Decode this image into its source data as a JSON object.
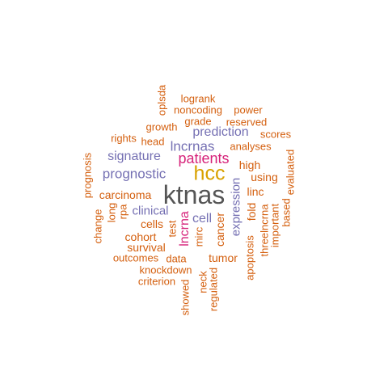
{
  "words": {
    "ktnas": "ktnas",
    "hcc": "hcc",
    "patients": "patients",
    "lncrnas": "lncrnas",
    "prediction": "prediction",
    "signature": "signature",
    "prognostic": "prognostic",
    "clinical": "clinical",
    "cell": "cell",
    "lncrna": "lncrna",
    "expression": "expression",
    "oplsda": "oplsda",
    "logrank": "logrank",
    "noncoding": "noncoding",
    "power": "power",
    "grade": "grade",
    "reserved": "reserved",
    "growth": "growth",
    "rights": "rights",
    "head": "head",
    "scores": "scores",
    "analyses": "analyses",
    "evaluated": "evaluated",
    "high": "high",
    "using": "using",
    "linc": "linc",
    "fold": "fold",
    "threelncrna": "threelncrna",
    "important": "important",
    "based": "based",
    "apoptosis": "apoptosis",
    "prognosis": "prognosis",
    "carcinoma": "carcinoma",
    "change": "change",
    "long": "long",
    "rpa": "rpa",
    "cells": "cells",
    "test": "test",
    "mirc": "mirc",
    "cancer": "cancer",
    "cohort": "cohort",
    "survival": "survival",
    "outcomes": "outcomes",
    "data": "data",
    "tumor": "tumor",
    "knockdown": "knockdown",
    "criterion": "criterion",
    "showed": "showed",
    "neck": "neck",
    "regulated": "regulated"
  },
  "colors": {
    "orange": "#d45f0e",
    "purple": "#7570b3",
    "pink": "#d6227a",
    "gold": "#d9a100",
    "gray": "#555555"
  }
}
